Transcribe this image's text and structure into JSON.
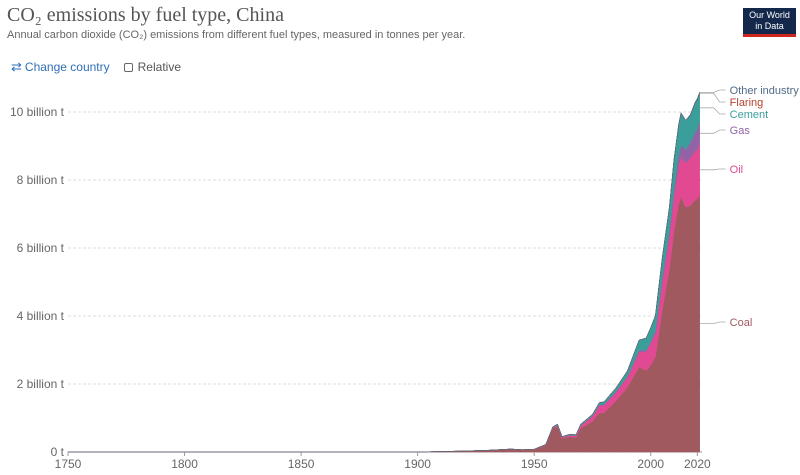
{
  "header": {
    "title": "CO₂ emissions by fuel type, China",
    "subtitle": "Annual carbon dioxide (CO₂) emissions from different fuel types, measured in tonnes per year.",
    "logo_line1": "Our World",
    "logo_line2": "in Data"
  },
  "controls": {
    "change_country": "Change country",
    "relative": "Relative"
  },
  "colors": {
    "coal": "#a05a5f",
    "oil": "#e14a92",
    "gas": "#9263a6",
    "cement": "#3a9f9a",
    "flaring": "#b9402e",
    "other": "#516b86"
  },
  "chart_data": {
    "type": "area",
    "title": "CO₂ emissions by fuel type, China",
    "ylabel": "",
    "xlim": [
      1750,
      2022
    ],
    "ylim": [
      0,
      10000000000
    ],
    "grid": true,
    "legend": "right",
    "x_ticks": [
      "1750",
      "1800",
      "1850",
      "1900",
      "1950",
      "2000",
      "2020"
    ],
    "y_ticks": [
      "0 t",
      "2 billion t",
      "4 billion t",
      "6 billion t",
      "8 billion t",
      "10 billion t"
    ],
    "x": [
      1750,
      1900,
      1910,
      1920,
      1930,
      1940,
      1945,
      1950,
      1955,
      1958,
      1960,
      1962,
      1965,
      1968,
      1970,
      1975,
      1978,
      1980,
      1985,
      1990,
      1995,
      1998,
      2000,
      2002,
      2005,
      2008,
      2010,
      2012,
      2013,
      2015,
      2017,
      2019,
      2020,
      2021
    ],
    "series": [
      {
        "name": "Coal",
        "values": [
          0,
          0,
          15,
          30,
          50,
          80,
          60,
          70,
          200,
          700,
          760,
          400,
          450,
          430,
          700,
          900,
          1150,
          1150,
          1500,
          1900,
          2500,
          2400,
          2550,
          2800,
          4200,
          5400,
          6500,
          7300,
          7500,
          7200,
          7250,
          7400,
          7450,
          7550
        ]
      },
      {
        "name": "Oil",
        "values": [
          0,
          0,
          0,
          0,
          0,
          5,
          5,
          10,
          15,
          20,
          30,
          35,
          40,
          50,
          80,
          150,
          220,
          230,
          250,
          300,
          450,
          550,
          650,
          700,
          850,
          950,
          1050,
          1150,
          1200,
          1300,
          1400,
          1450,
          1450,
          1500
        ]
      },
      {
        "name": "Gas",
        "values": [
          0,
          0,
          0,
          0,
          0,
          0,
          0,
          0,
          0,
          2,
          3,
          3,
          5,
          8,
          10,
          15,
          20,
          25,
          25,
          30,
          40,
          45,
          50,
          60,
          90,
          150,
          200,
          280,
          320,
          400,
          450,
          550,
          600,
          650
        ]
      },
      {
        "name": "Cement",
        "values": [
          0,
          0,
          0,
          0,
          0,
          2,
          2,
          3,
          10,
          20,
          25,
          15,
          20,
          20,
          30,
          40,
          60,
          70,
          100,
          150,
          300,
          350,
          400,
          450,
          600,
          700,
          850,
          900,
          950,
          850,
          800,
          850,
          860,
          850
        ]
      },
      {
        "name": "Flaring",
        "values": [
          0,
          0,
          0,
          0,
          0,
          0,
          0,
          0,
          0,
          0,
          0,
          0,
          0,
          0,
          0,
          2,
          3,
          3,
          4,
          5,
          5,
          5,
          5,
          6,
          6,
          6,
          6,
          6,
          6,
          6,
          6,
          6,
          6,
          6
        ]
      },
      {
        "name": "Other industry",
        "values": [
          0,
          0,
          0,
          0,
          0,
          0,
          0,
          0,
          0,
          0,
          0,
          0,
          0,
          0,
          0,
          0,
          0,
          0,
          0,
          0,
          0,
          0,
          0,
          0,
          0,
          0,
          0,
          0,
          0,
          0,
          20,
          30,
          35,
          35
        ]
      }
    ]
  }
}
